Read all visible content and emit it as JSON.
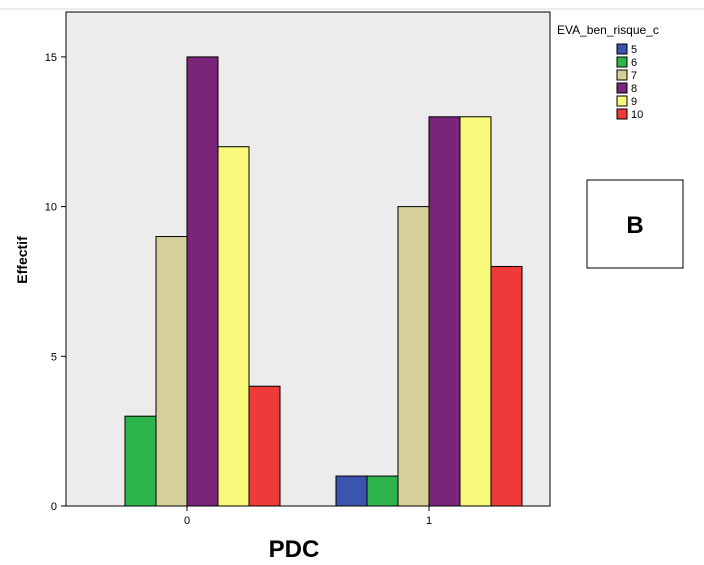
{
  "chart_data": {
    "type": "bar",
    "categories": [
      "0",
      "1"
    ],
    "series": [
      {
        "name": "5",
        "color": "#3a55b0",
        "values": [
          0,
          1
        ]
      },
      {
        "name": "6",
        "color": "#2db44a",
        "values": [
          3,
          1
        ]
      },
      {
        "name": "7",
        "color": "#d6cf9a",
        "values": [
          9,
          10
        ]
      },
      {
        "name": "8",
        "color": "#7a257a",
        "values": [
          15,
          13
        ]
      },
      {
        "name": "9",
        "color": "#f8f87a",
        "values": [
          12,
          13
        ]
      },
      {
        "name": "10",
        "color": "#f03a3a",
        "values": [
          4,
          8
        ]
      }
    ],
    "xlabel": "PDC",
    "ylabel": "Effectif",
    "ylim": [
      0,
      16.5
    ],
    "yticks": [
      0,
      5,
      10,
      15
    ],
    "legend_title": "EVA_ben_risque_c",
    "legend_position": "top-right",
    "grid": false,
    "plot_background": "#ececec",
    "panel_letter": "B"
  }
}
